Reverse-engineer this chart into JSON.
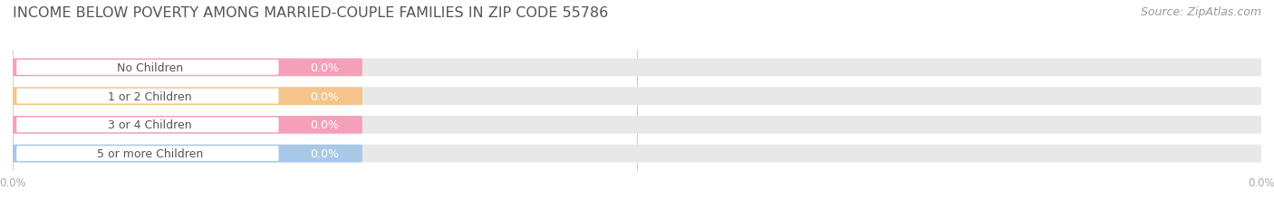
{
  "title": "INCOME BELOW POVERTY AMONG MARRIED-COUPLE FAMILIES IN ZIP CODE 55786",
  "source": "Source: ZipAtlas.com",
  "categories": [
    "No Children",
    "1 or 2 Children",
    "3 or 4 Children",
    "5 or more Children"
  ],
  "values": [
    0.0,
    0.0,
    0.0,
    0.0
  ],
  "bar_colors": [
    "#f4a0b8",
    "#f5c48a",
    "#f4a0b8",
    "#a8c8e8"
  ],
  "bar_bg_color": "#e8e8e8",
  "white_pill_color": "#ffffff",
  "value_label_color": "#ffffff",
  "category_label_color": "#555555",
  "title_color": "#555555",
  "source_color": "#999999",
  "background_color": "#ffffff",
  "title_fontsize": 11.5,
  "source_fontsize": 9,
  "bar_label_fontsize": 9,
  "value_fontsize": 9,
  "grid_color": "#d0d0d0",
  "xtick_color": "#aaaaaa",
  "xtick_fontsize": 8.5
}
